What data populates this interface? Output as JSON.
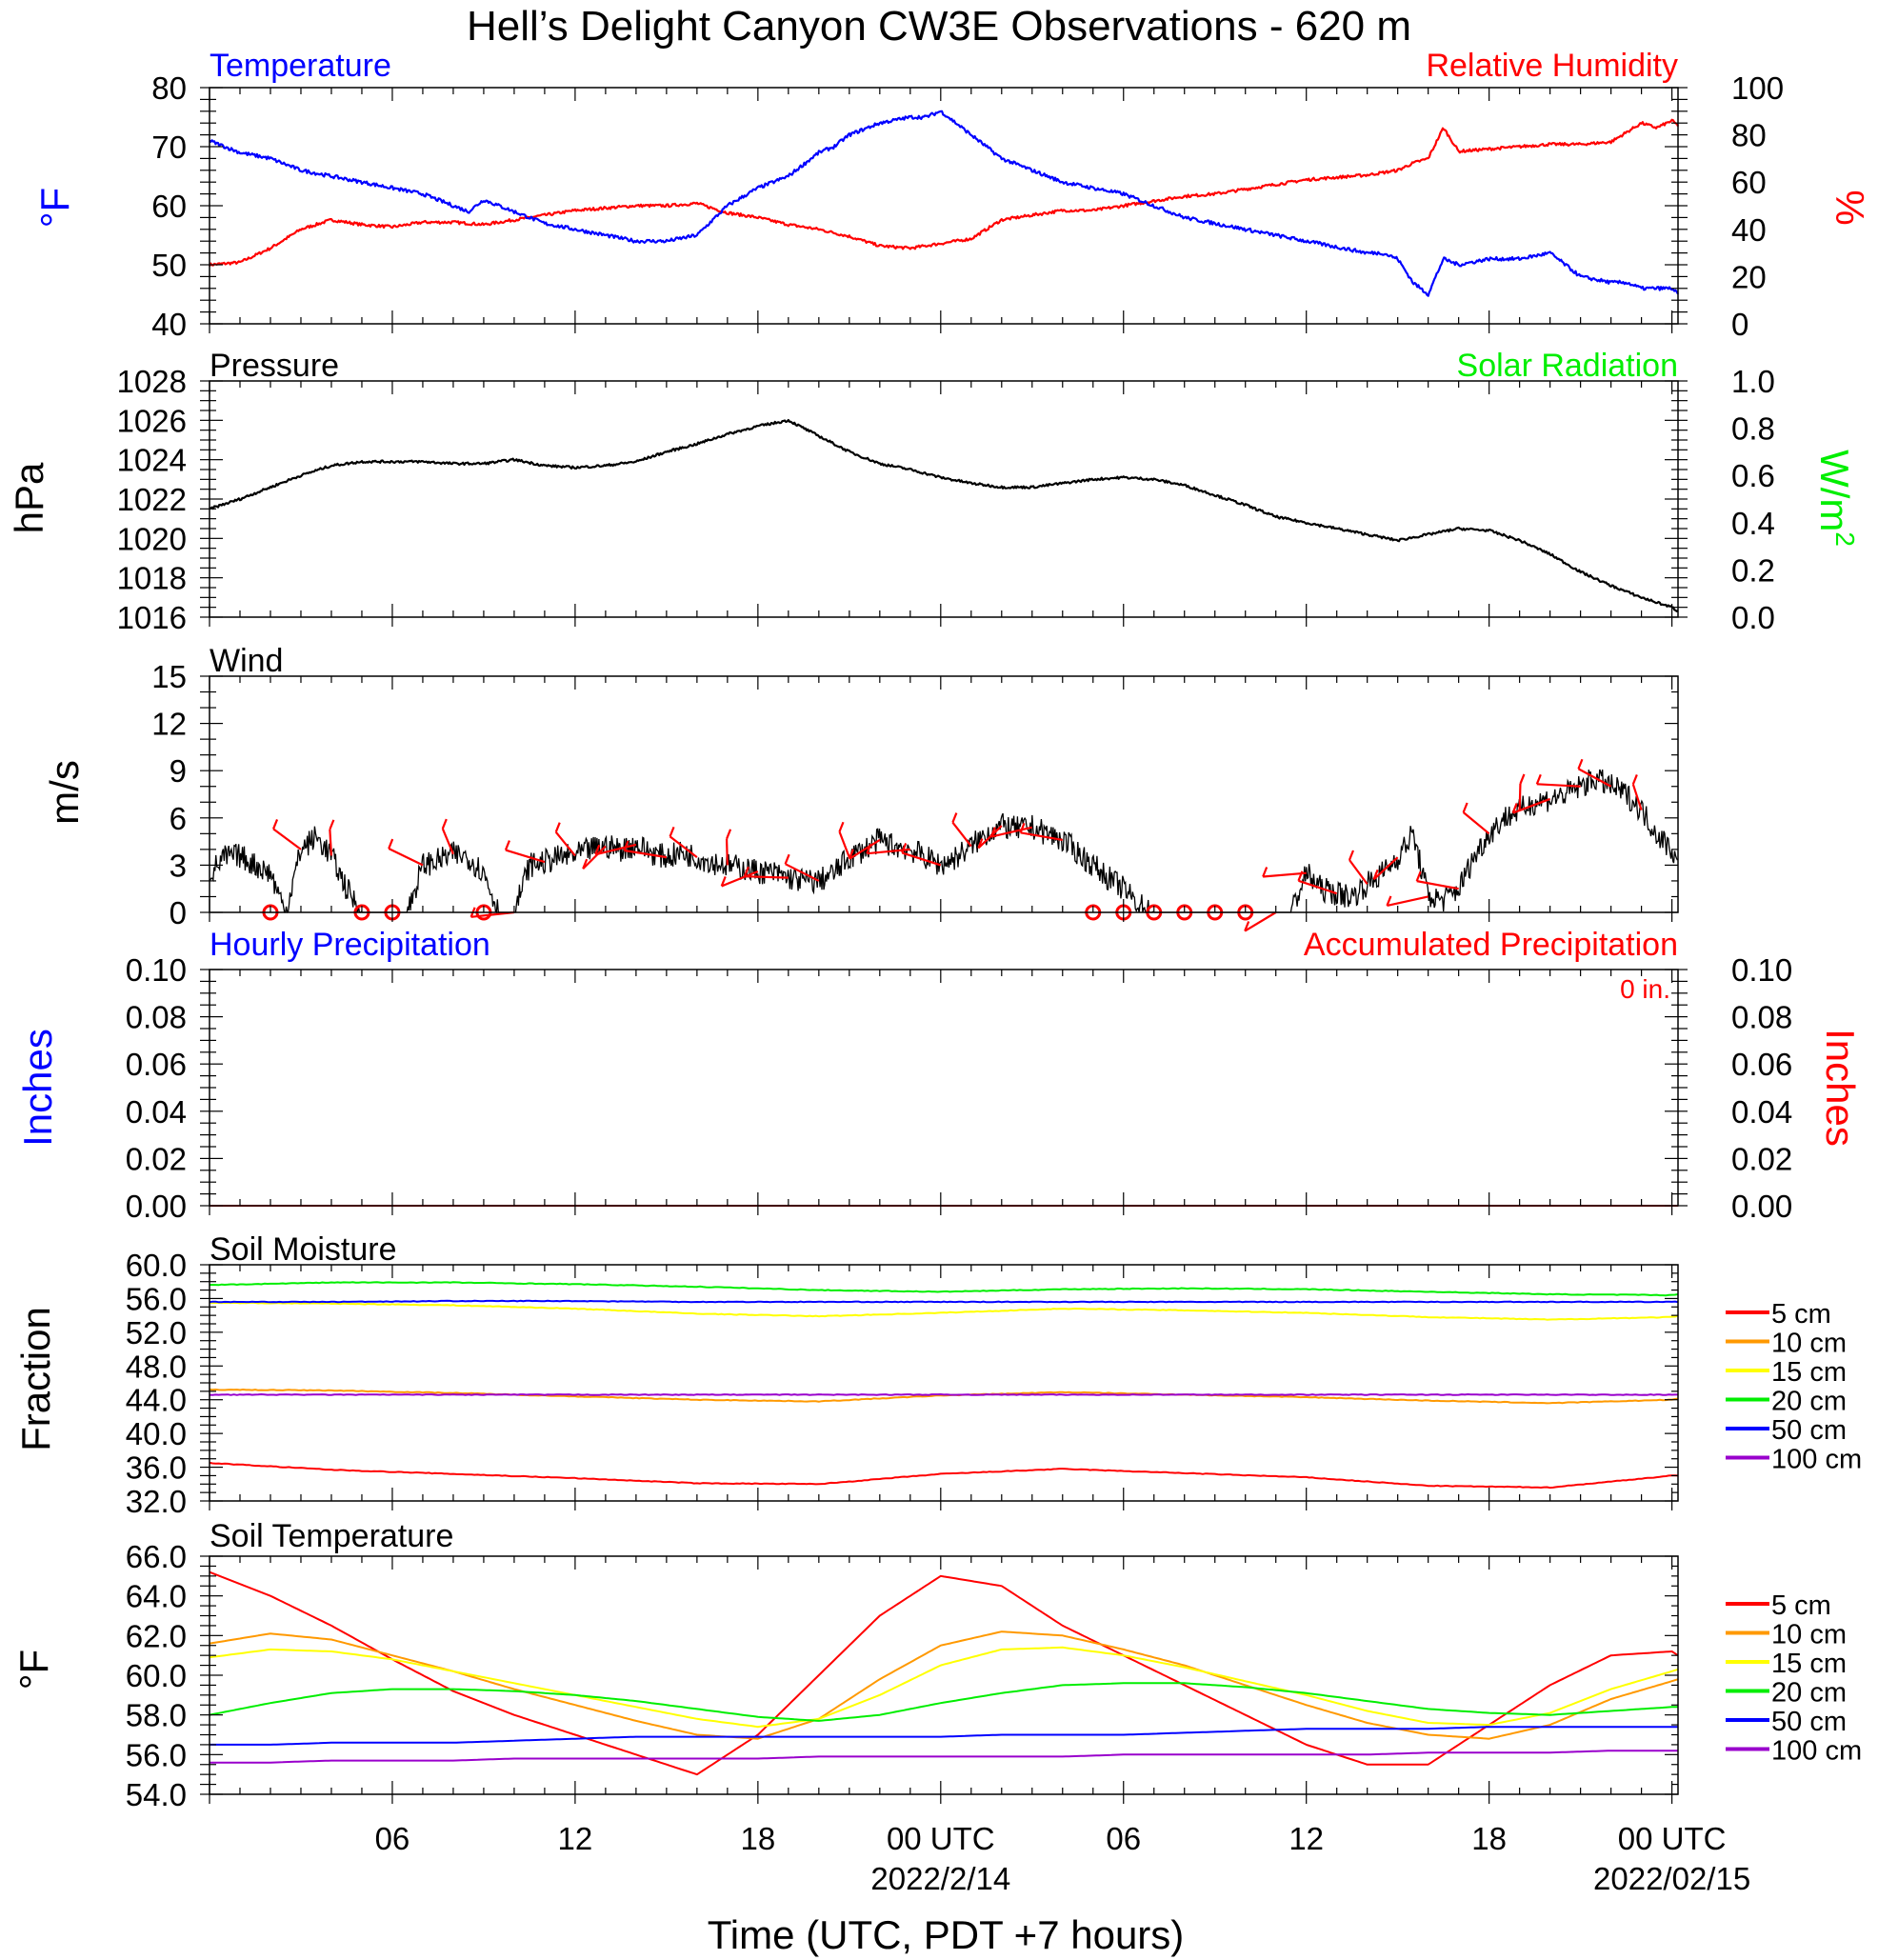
{
  "title": "Hell’s Delight Canyon CW3E Observations - 620 m",
  "xaxis": {
    "hours": [
      0,
      48.2
    ],
    "tick_labels": [
      {
        "hour": 6,
        "label": "06"
      },
      {
        "hour": 12,
        "label": "12"
      },
      {
        "hour": 18,
        "label": "18"
      },
      {
        "hour": 24,
        "label": "00 UTC"
      },
      {
        "hour": 30,
        "label": "06"
      },
      {
        "hour": 36,
        "label": "12"
      },
      {
        "hour": 42,
        "label": "18"
      },
      {
        "hour": 48,
        "label": "00 UTC"
      }
    ],
    "date_labels": [
      {
        "hour": 24,
        "label": "2022/2/14"
      },
      {
        "hour": 48,
        "label": "2022/02/15"
      }
    ],
    "title": "Time (UTC, PDT +7 hours)"
  },
  "colors": {
    "temperature": "#0000ff",
    "humidity": "#ff0000",
    "pressure": "#000000",
    "solar": "#00ff00",
    "wind": "#000000",
    "barb": "#ff0000",
    "precip_hourly": "#0000ff",
    "precip_accum": "#ff0000",
    "depth_5": "#ff0000",
    "depth_10": "#ff9900",
    "depth_15": "#ffff00",
    "depth_20": "#00ee00",
    "depth_50": "#0000ff",
    "depth_100": "#9900cc"
  },
  "panels": {
    "temp_rh": {
      "left_title": "Temperature",
      "right_title": "Relative Humidity",
      "left_unit": "oF",
      "right_unit": "%",
      "left_ticks": [
        "80",
        "70",
        "60",
        "50",
        "40"
      ],
      "right_ticks": [
        "100",
        "80",
        "60",
        "40",
        "20",
        "0"
      ]
    },
    "pressure": {
      "left_title": "Pressure",
      "right_title": "Solar Radiation",
      "left_unit": "hPa",
      "right_unit": "W/m2",
      "left_ticks": [
        "1028",
        "1026",
        "1024",
        "1022",
        "1020",
        "1018",
        "1016"
      ],
      "right_ticks": [
        "1.0",
        "0.8",
        "0.6",
        "0.4",
        "0.2",
        "0.0"
      ]
    },
    "wind": {
      "left_title": "Wind",
      "left_unit": "m/s",
      "left_ticks": [
        "15",
        "12",
        "9",
        "6",
        "3",
        "0"
      ]
    },
    "precip": {
      "left_title": "Hourly Precipitation",
      "right_title": "Accumulated Precipitation",
      "total_label": "0 in.",
      "left_unit": "Inches",
      "right_unit": "Inches",
      "left_ticks": [
        "0.10",
        "0.08",
        "0.06",
        "0.04",
        "0.02",
        "0.00"
      ],
      "right_ticks": [
        "0.10",
        "0.08",
        "0.06",
        "0.04",
        "0.02",
        "0.00"
      ]
    },
    "soil_moisture": {
      "left_title": "Soil Moisture",
      "left_unit": "Fraction",
      "left_ticks": [
        "60.0",
        "56.0",
        "52.0",
        "48.0",
        "44.0",
        "40.0",
        "36.0",
        "32.0"
      ],
      "legend": [
        "5 cm",
        "10 cm",
        "15 cm",
        "20 cm",
        "50 cm",
        "100 cm"
      ]
    },
    "soil_temp": {
      "left_title": "Soil Temperature",
      "left_unit": "oF",
      "left_ticks": [
        "66.0",
        "64.0",
        "62.0",
        "60.0",
        "58.0",
        "56.0",
        "54.0"
      ],
      "legend": [
        "5 cm",
        "10 cm",
        "15 cm",
        "20 cm",
        "50 cm",
        "100 cm"
      ]
    }
  },
  "chart_data": [
    {
      "type": "line",
      "title": "Temperature / Relative Humidity",
      "x_unit": "hours since 2022-02-13 00 UTC",
      "ylim_left": [
        40,
        80
      ],
      "ylim_right": [
        0,
        100
      ],
      "series": [
        {
          "name": "Temperature",
          "axis": "left",
          "x": [
            0,
            1,
            2,
            3,
            4,
            5,
            6,
            7,
            8,
            8.5,
            9,
            10,
            11,
            12,
            13,
            14,
            15,
            16,
            17,
            18,
            19,
            20,
            20.5,
            21,
            22,
            23,
            23.5,
            24,
            25,
            26,
            27,
            28,
            29,
            30,
            31,
            32,
            33,
            34,
            35,
            36,
            37,
            38,
            38.5,
            39,
            39.5,
            40,
            40.5,
            41,
            42,
            43,
            44,
            45,
            46,
            46.5,
            47,
            48,
            48.2
          ],
          "y": [
            71,
            69,
            68,
            66,
            65,
            64,
            63,
            62,
            60,
            59,
            61,
            59,
            57,
            56,
            55,
            54,
            54,
            55,
            60,
            63,
            65,
            69,
            70,
            72,
            74,
            75,
            75,
            76,
            72,
            68,
            66,
            64,
            63,
            62,
            60,
            58,
            57,
            56,
            55,
            54,
            53,
            52,
            52,
            51,
            47,
            45,
            51,
            50,
            51,
            51,
            52,
            48,
            47,
            47,
            46,
            46,
            45
          ]
        },
        {
          "name": "Relative Humidity",
          "axis": "right",
          "x": [
            0,
            1,
            2,
            3,
            4,
            5,
            6,
            7,
            8,
            9,
            10,
            11,
            12,
            13,
            14,
            15,
            16,
            17,
            18,
            19,
            20,
            21,
            22,
            23,
            24,
            25,
            25.5,
            26,
            27,
            28,
            29,
            30,
            31,
            32,
            33,
            34,
            35,
            36,
            37,
            38,
            39,
            39.5,
            40,
            40.5,
            41,
            42,
            43,
            44,
            45,
            46,
            47,
            47.5,
            48,
            48.2
          ],
          "y": [
            25,
            26,
            32,
            40,
            44,
            42,
            41,
            43,
            43,
            42,
            44,
            46,
            48,
            49,
            50,
            50,
            51,
            47,
            45,
            42,
            40,
            37,
            33,
            32,
            34,
            36,
            40,
            44,
            46,
            48,
            48,
            50,
            52,
            54,
            55,
            57,
            59,
            61,
            62,
            63,
            65,
            68,
            70,
            83,
            73,
            74,
            75,
            76,
            76,
            77,
            85,
            83,
            86,
            84
          ]
        }
      ]
    },
    {
      "type": "line",
      "title": "Pressure",
      "ylim": [
        1016,
        1028
      ],
      "series": [
        {
          "name": "Pressure",
          "x": [
            0,
            1,
            2,
            3,
            4,
            5,
            6,
            7,
            8,
            9,
            10,
            11,
            12,
            13,
            14,
            15,
            16,
            17,
            18,
            19,
            20,
            21,
            22,
            23,
            24,
            25,
            26,
            27,
            28,
            29,
            30,
            31,
            32,
            33,
            34,
            35,
            36,
            37,
            38,
            39,
            40,
            41,
            42,
            43,
            44,
            45,
            46,
            47,
            48,
            48.2
          ],
          "y": [
            1021.5,
            1022.0,
            1022.6,
            1023.2,
            1023.7,
            1023.9,
            1023.9,
            1023.9,
            1023.8,
            1023.8,
            1024.0,
            1023.7,
            1023.6,
            1023.7,
            1023.9,
            1024.4,
            1024.8,
            1025.3,
            1025.7,
            1026.0,
            1025.2,
            1024.4,
            1023.8,
            1023.5,
            1023.1,
            1022.8,
            1022.6,
            1022.6,
            1022.8,
            1023.0,
            1023.1,
            1023.0,
            1022.7,
            1022.2,
            1021.7,
            1021.1,
            1020.8,
            1020.5,
            1020.2,
            1019.9,
            1020.2,
            1020.5,
            1020.4,
            1019.9,
            1019.2,
            1018.3,
            1017.6,
            1017.0,
            1016.5,
            1016.3
          ]
        }
      ]
    },
    {
      "type": "line",
      "title": "Wind",
      "ylim": [
        0,
        15
      ],
      "series": [
        {
          "name": "Wind speed",
          "x": [
            0,
            0.5,
            1,
            1.5,
            2,
            2.5,
            3,
            3.5,
            4,
            4.5,
            5,
            5.5,
            6,
            6.5,
            7,
            7.5,
            8,
            8.5,
            9,
            9.5,
            10,
            10.5,
            11,
            11.5,
            12,
            12.5,
            13,
            13.5,
            14,
            14.5,
            15,
            15.5,
            16,
            16.5,
            17,
            17.5,
            18,
            18.5,
            19,
            19.5,
            20,
            20.5,
            21,
            21.5,
            22,
            22.5,
            23,
            23.5,
            24,
            24.5,
            25,
            25.5,
            26,
            26.5,
            27,
            27.5,
            28,
            28.5,
            29,
            29.5,
            30,
            30.5,
            31,
            31.5,
            32,
            32.5,
            33,
            33.5,
            34,
            34.5,
            35,
            35.5,
            36,
            36.5,
            37,
            37.5,
            38,
            38.5,
            39,
            39.5,
            40,
            40.5,
            41,
            41.5,
            42,
            42.5,
            43,
            43.5,
            44,
            44.5,
            45,
            45.5,
            46,
            46.5,
            47,
            47.5,
            48,
            48.2
          ],
          "y": [
            2.5,
            3.5,
            3.6,
            3.0,
            2.5,
            0,
            4.0,
            4.8,
            3.6,
            1.5,
            0,
            0,
            0,
            0,
            3.0,
            3.3,
            3.7,
            3.5,
            2.5,
            0,
            0,
            3.0,
            3.2,
            3.5,
            3.6,
            4.0,
            4.2,
            4.0,
            4.3,
            3.8,
            3.5,
            3.8,
            3.5,
            3.2,
            3.0,
            2.8,
            2.6,
            2.5,
            2.2,
            2.0,
            2.0,
            2.5,
            3.5,
            4.0,
            4.6,
            4.2,
            4.0,
            3.5,
            3.0,
            3.5,
            4.2,
            5.0,
            5.5,
            5.3,
            5.4,
            5.0,
            4.6,
            3.8,
            3.0,
            2.2,
            1.5,
            0.5,
            0,
            0,
            0,
            0,
            0,
            0,
            0,
            0,
            0,
            0,
            2.5,
            1.5,
            1.2,
            1.0,
            1.8,
            2.5,
            3.5,
            5.0,
            1.0,
            0.8,
            1.5,
            3.5,
            5.0,
            6.0,
            6.5,
            7.0,
            7.2,
            7.5,
            8.0,
            8.5,
            8.0,
            7.5,
            6.5,
            5.0,
            4.0,
            3.0
          ]
        }
      ]
    },
    {
      "type": "line",
      "title": "Hourly Precipitation / Accumulated Precipitation",
      "ylim": [
        0,
        0.1
      ],
      "series": [
        {
          "name": "Hourly Precipitation",
          "x": [
            0,
            48.2
          ],
          "y": [
            0,
            0
          ]
        },
        {
          "name": "Accumulated Precipitation",
          "x": [
            0,
            48.2
          ],
          "y": [
            0,
            0
          ]
        }
      ]
    },
    {
      "type": "line",
      "title": "Soil Moisture",
      "ylim": [
        32,
        60
      ],
      "x": [
        0,
        4,
        8,
        12,
        16,
        20,
        24,
        28,
        32,
        36,
        40,
        44,
        48,
        48.2
      ],
      "series": [
        {
          "name": "5 cm",
          "values": [
            36.5,
            35.7,
            35.2,
            34.7,
            34.1,
            34.0,
            35.2,
            35.8,
            35.3,
            34.8,
            33.8,
            33.6,
            35.0,
            35.0
          ]
        },
        {
          "name": "10 cm",
          "values": [
            45.2,
            45.1,
            44.8,
            44.4,
            44.0,
            43.8,
            44.5,
            44.9,
            44.6,
            44.3,
            43.9,
            43.6,
            44.0,
            44.1
          ]
        },
        {
          "name": "15 cm",
          "values": [
            55.5,
            55.4,
            55.2,
            54.8,
            54.2,
            53.9,
            54.3,
            54.8,
            54.6,
            54.3,
            53.8,
            53.5,
            53.8,
            53.9
          ]
        },
        {
          "name": "20 cm",
          "values": [
            57.6,
            57.9,
            57.9,
            57.7,
            57.4,
            57.0,
            56.8,
            57.1,
            57.2,
            57.1,
            56.8,
            56.5,
            56.4,
            56.5
          ]
        },
        {
          "name": "50 cm",
          "values": [
            55.6,
            55.6,
            55.7,
            55.7,
            55.6,
            55.6,
            55.6,
            55.6,
            55.6,
            55.6,
            55.6,
            55.6,
            55.6,
            55.6
          ]
        },
        {
          "name": "100 cm",
          "values": [
            44.6,
            44.6,
            44.6,
            44.6,
            44.6,
            44.6,
            44.6,
            44.6,
            44.6,
            44.6,
            44.6,
            44.6,
            44.6,
            44.6
          ]
        }
      ]
    },
    {
      "type": "line",
      "title": "Soil Temperature",
      "ylim": [
        54,
        66
      ],
      "x": [
        0,
        2,
        4,
        6,
        8,
        10,
        12,
        14,
        16,
        18,
        20,
        22,
        24,
        26,
        28,
        30,
        32,
        34,
        36,
        38,
        40,
        42,
        44,
        46,
        48,
        48.2
      ],
      "series": [
        {
          "name": "5 cm",
          "values": [
            65.2,
            64.0,
            62.5,
            60.8,
            59.2,
            58.0,
            57.0,
            56.0,
            55.0,
            57.0,
            60.0,
            63.0,
            65.0,
            64.5,
            62.5,
            61.0,
            59.5,
            58.0,
            56.5,
            55.5,
            55.5,
            57.5,
            59.5,
            61.0,
            61.2,
            61.0
          ]
        },
        {
          "name": "10 cm",
          "values": [
            61.6,
            62.1,
            61.8,
            61.0,
            60.2,
            59.3,
            58.5,
            57.7,
            57.0,
            56.8,
            57.8,
            59.8,
            61.5,
            62.2,
            62.0,
            61.3,
            60.5,
            59.5,
            58.5,
            57.6,
            57.0,
            56.8,
            57.5,
            58.8,
            59.7,
            59.8
          ]
        },
        {
          "name": "15 cm",
          "values": [
            60.9,
            61.3,
            61.2,
            60.8,
            60.2,
            59.6,
            59.0,
            58.4,
            57.8,
            57.4,
            57.8,
            59.0,
            60.5,
            61.3,
            61.4,
            61.0,
            60.4,
            59.7,
            59.0,
            58.2,
            57.6,
            57.5,
            58.1,
            59.3,
            60.2,
            60.3
          ]
        },
        {
          "name": "20 cm",
          "values": [
            58.0,
            58.6,
            59.1,
            59.3,
            59.3,
            59.2,
            59.0,
            58.7,
            58.3,
            57.9,
            57.7,
            58.0,
            58.6,
            59.1,
            59.5,
            59.6,
            59.6,
            59.4,
            59.1,
            58.7,
            58.3,
            58.1,
            58.0,
            58.2,
            58.4,
            58.4
          ]
        },
        {
          "name": "50 cm",
          "values": [
            56.5,
            56.5,
            56.6,
            56.6,
            56.6,
            56.7,
            56.8,
            56.9,
            56.9,
            56.9,
            56.9,
            56.9,
            56.9,
            57.0,
            57.0,
            57.0,
            57.1,
            57.2,
            57.3,
            57.3,
            57.3,
            57.4,
            57.4,
            57.4,
            57.4,
            57.4
          ]
        },
        {
          "name": "100 cm",
          "values": [
            55.6,
            55.6,
            55.7,
            55.7,
            55.7,
            55.8,
            55.8,
            55.8,
            55.8,
            55.8,
            55.9,
            55.9,
            55.9,
            55.9,
            55.9,
            56.0,
            56.0,
            56.0,
            56.0,
            56.0,
            56.1,
            56.1,
            56.1,
            56.2,
            56.2,
            56.2
          ]
        }
      ]
    }
  ]
}
